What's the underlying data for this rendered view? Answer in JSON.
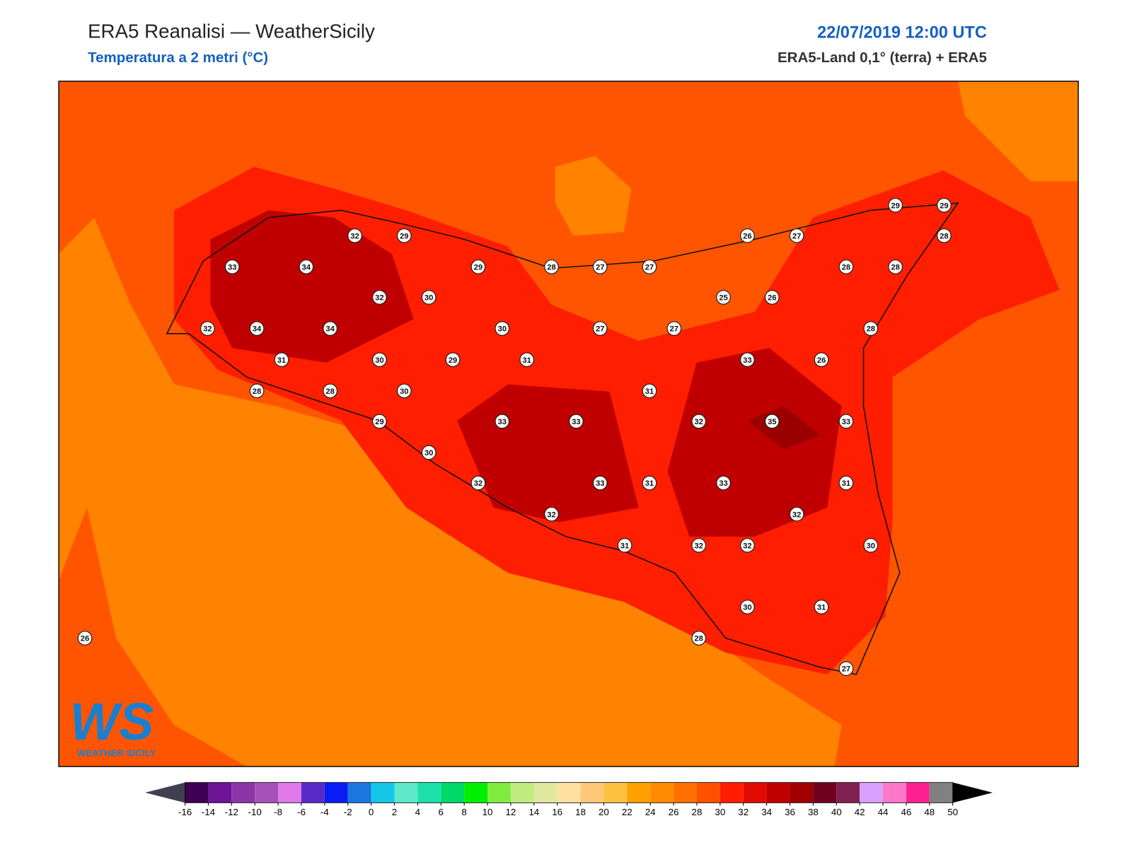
{
  "header": {
    "title": "ERA5 Reanalisi — WeatherSicily",
    "subtitle": "Temperatura a 2 metri (°C)",
    "datetime": "22/07/2019 12:00 UTC",
    "source": "ERA5-Land 0,1° (terra) + ERA5"
  },
  "stations": [
    32,
    29,
    33,
    34,
    29,
    28,
    27,
    27,
    26,
    27,
    29,
    29,
    28,
    28,
    28,
    32,
    30,
    25,
    26,
    32,
    34,
    34,
    30,
    27,
    27,
    28,
    31,
    30,
    29,
    31,
    33,
    26,
    28,
    28,
    30,
    31,
    29,
    33,
    33,
    32,
    35,
    33,
    30,
    32,
    33,
    31,
    33,
    31,
    32,
    32,
    31,
    32,
    32,
    30,
    30,
    31,
    28,
    27,
    26
  ],
  "colorbar": {
    "ticks": [
      -16,
      -14,
      -12,
      -10,
      -8,
      -6,
      -4,
      -2,
      0,
      2,
      4,
      6,
      8,
      10,
      12,
      14,
      16,
      18,
      20,
      22,
      24,
      26,
      28,
      30,
      32,
      34,
      36,
      38,
      40,
      42,
      44,
      46,
      48,
      50
    ],
    "colors": [
      "#3f0053",
      "#6c1396",
      "#8a36a8",
      "#a552b8",
      "#e07ae8",
      "#5a2ac9",
      "#0a1cf5",
      "#1a78e0",
      "#16c6e8",
      "#5ee8c8",
      "#1ce0a8",
      "#00d868",
      "#00f000",
      "#80ec40",
      "#c0ec80",
      "#e0e8a0",
      "#ffe0a0",
      "#ffc878",
      "#ffc040",
      "#ffa000",
      "#ff8c00",
      "#ff7000",
      "#ff5000",
      "#ff1e00",
      "#e00a00",
      "#c00000",
      "#a00000",
      "#700020",
      "#802050",
      "#d8a0ff",
      "#ff78c8",
      "#ff2090",
      "#808080"
    ]
  },
  "logo": {
    "mark": "WS",
    "name": "WEATHER SICILY"
  }
}
